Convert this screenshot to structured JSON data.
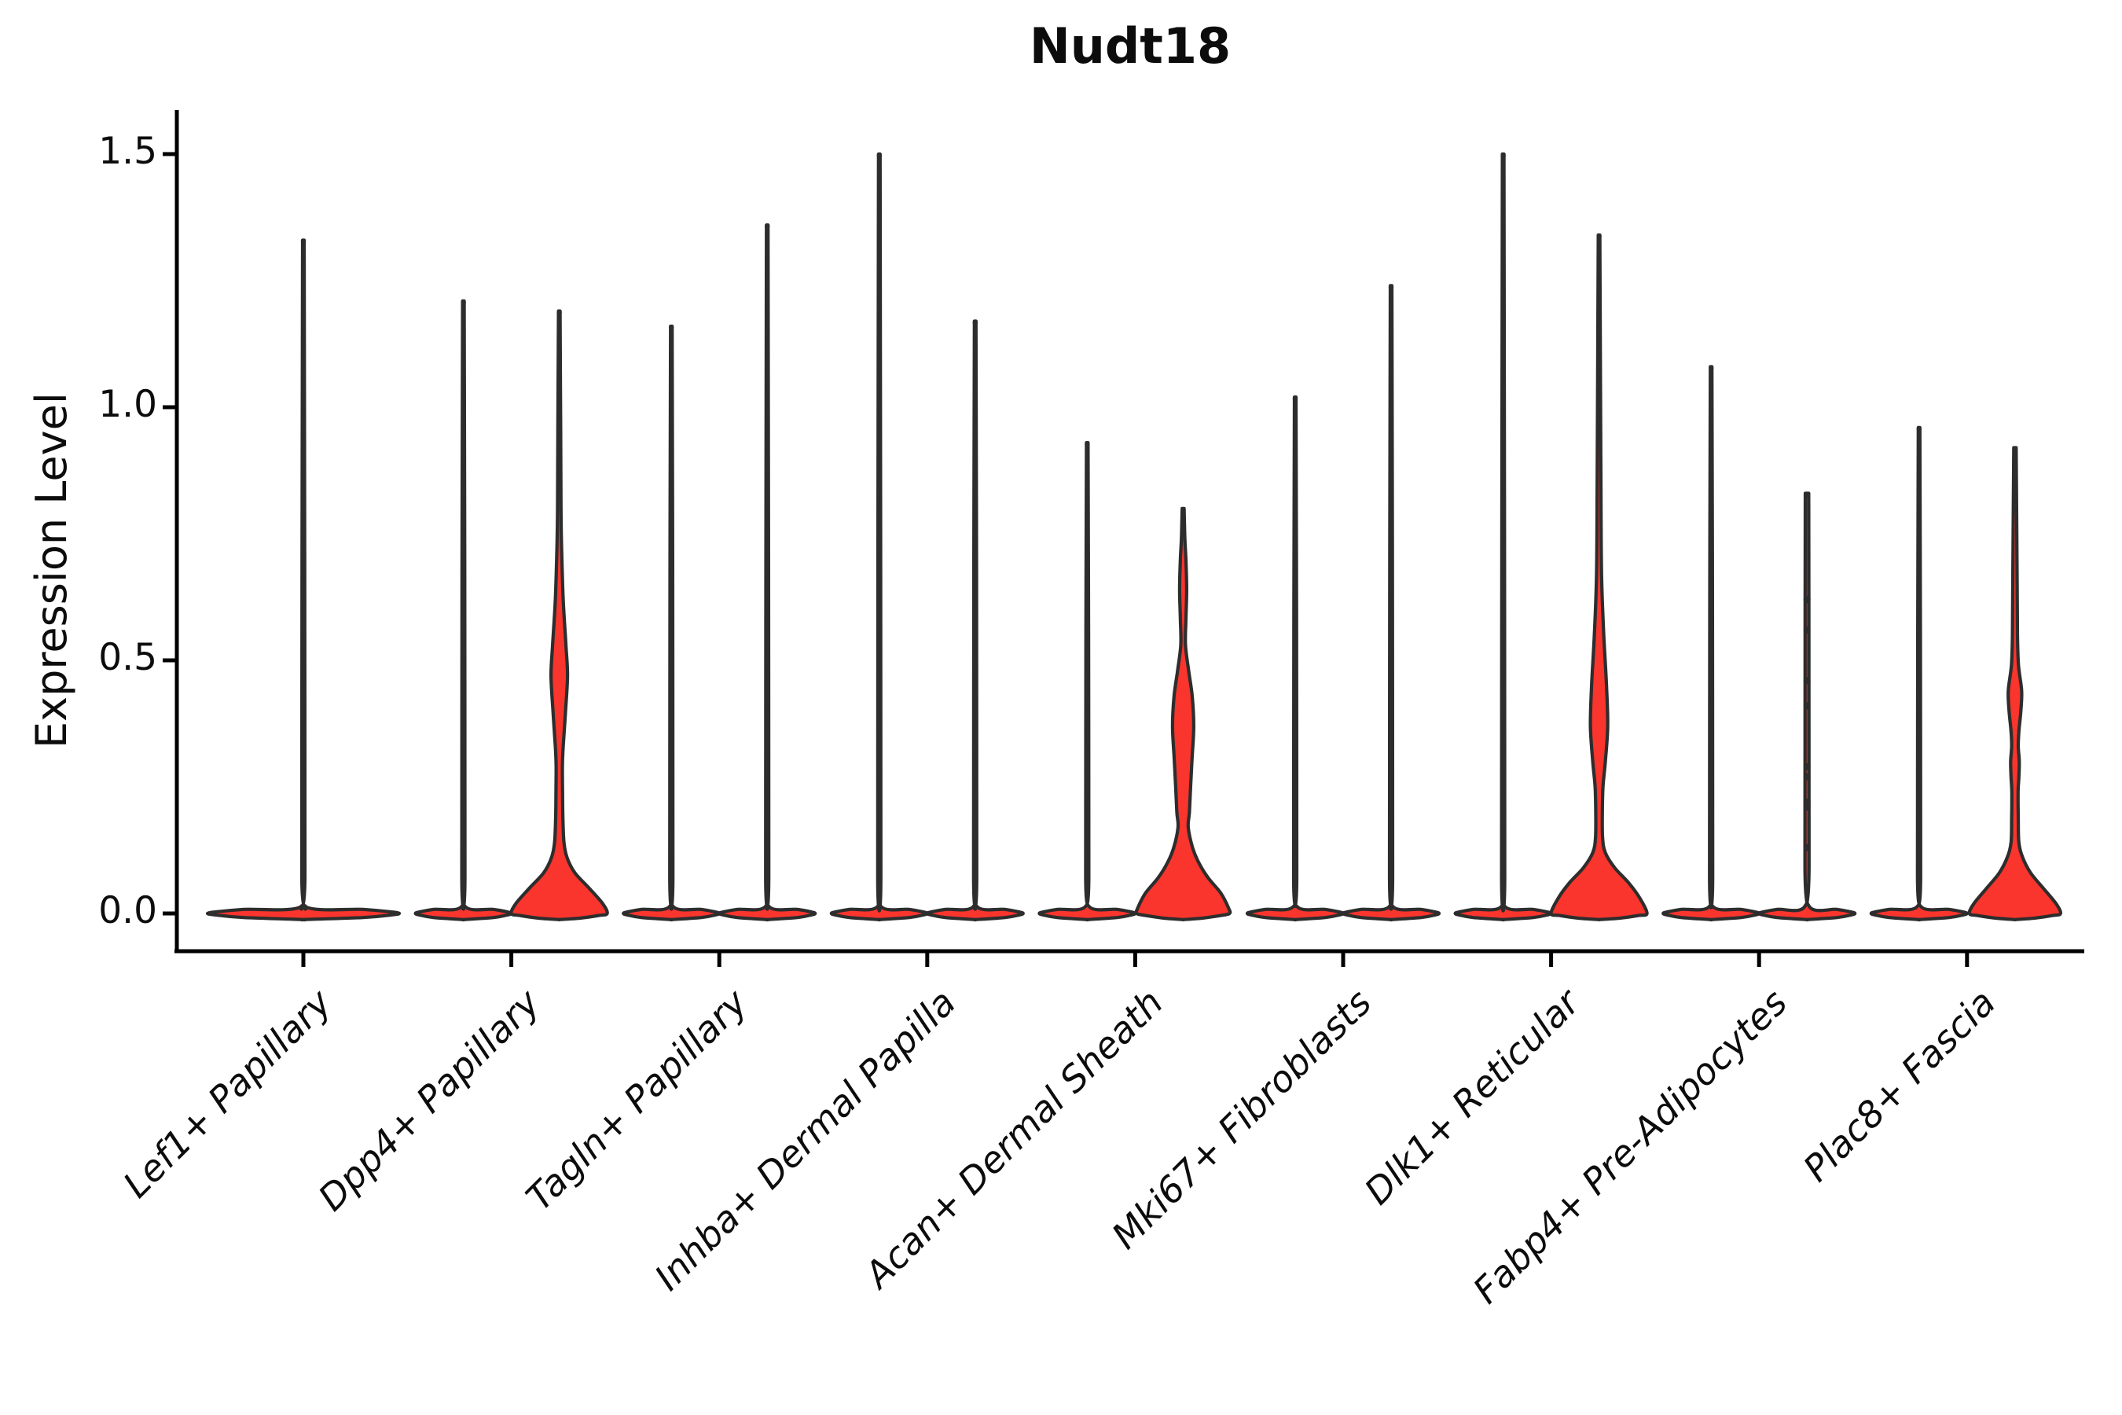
{
  "title": "Nudt18",
  "ylabel": "Expression Level",
  "chart_data": {
    "type": "violin",
    "title": "Nudt18",
    "xlabel": "",
    "ylabel": "Expression Level",
    "ylim": [
      -0.07,
      1.59
    ],
    "yticks": [
      {
        "value": 0.0,
        "label": "0.0"
      },
      {
        "value": 0.5,
        "label": "0.5"
      },
      {
        "value": 1.0,
        "label": "1.0"
      },
      {
        "value": 1.5,
        "label": "1.5"
      }
    ],
    "grid": false,
    "legend": "none",
    "categories": [
      "Lef1+ Papillary",
      "Dpp4+ Papillary",
      "Tagln+ Papillary",
      "Inhba+ Dermal Papilla",
      "Acan+ Dermal Sheath",
      "Mki67+ Fibroblasts",
      "Dlk1+ Reticular",
      "Fabp4+ Pre-Adipocytes",
      "Plac8+ Fascia"
    ],
    "colors": {
      "violin_fill": "#f9352d",
      "violin_outline": "#2d2d2d",
      "axis": "#000000",
      "text": "#0c0c0c"
    },
    "note": "Most cells express 0 (violins collapsed to flat baseline with a thin spike to the max expressing cell). Each category has two side-by-side violins except Lef1+ Papillary which has one full-width violin. Red area visible where density is wide enough.",
    "violins": [
      {
        "category_index": 0,
        "category": "Lef1+ Papillary",
        "side": "single",
        "max_expression": 1.33,
        "red_visible": false,
        "dots": [],
        "profile": [
          [
            1.33,
            1
          ],
          [
            0.7,
            1.7
          ],
          [
            0.08,
            2.0
          ],
          [
            0.014,
            2.2
          ],
          [
            0.008,
            76
          ],
          [
            0.003,
            112
          ],
          [
            0,
            122
          ],
          [
            -0.003,
            112
          ],
          [
            -0.008,
            76
          ],
          [
            -0.012,
            1.5
          ]
        ]
      },
      {
        "category_index": 1,
        "category": "Dpp4+ Papillary",
        "side": "left",
        "max_expression": 1.21,
        "red_visible": false,
        "dots": [],
        "profile": [
          [
            1.21,
            1
          ],
          [
            0.7,
            1.7
          ],
          [
            0.08,
            2.0
          ],
          [
            0.014,
            2.2
          ],
          [
            0.008,
            38
          ],
          [
            0.003,
            56
          ],
          [
            0,
            61
          ],
          [
            -0.003,
            56
          ],
          [
            -0.008,
            38
          ],
          [
            -0.012,
            1.5
          ]
        ]
      },
      {
        "category_index": 1,
        "category": "Dpp4+ Papillary",
        "side": "right",
        "max_expression": 1.19,
        "red_visible": true,
        "dots": [],
        "profile": [
          [
            1.19,
            1
          ],
          [
            0.95,
            1.8
          ],
          [
            0.8,
            2.2
          ],
          [
            0.72,
            3.0
          ],
          [
            0.62,
            5.0
          ],
          [
            0.53,
            8.5
          ],
          [
            0.47,
            10.5
          ],
          [
            0.4,
            8.0
          ],
          [
            0.33,
            5.0
          ],
          [
            0.29,
            4.0
          ],
          [
            0.24,
            4.2
          ],
          [
            0.19,
            4.6
          ],
          [
            0.14,
            6.0
          ],
          [
            0.11,
            10
          ],
          [
            0.08,
            20
          ],
          [
            0.05,
            38
          ],
          [
            0.02,
            55
          ],
          [
            0,
            61
          ],
          [
            -0.004,
            50
          ],
          [
            -0.009,
            28
          ],
          [
            -0.012,
            1.5
          ]
        ]
      },
      {
        "category_index": 2,
        "category": "Tagln+ Papillary",
        "side": "left",
        "max_expression": 1.16,
        "red_visible": false,
        "dots": [],
        "profile": [
          [
            1.16,
            1
          ],
          [
            0.7,
            1.7
          ],
          [
            0.08,
            2.0
          ],
          [
            0.014,
            2.2
          ],
          [
            0.008,
            38
          ],
          [
            0.003,
            56
          ],
          [
            0,
            61
          ],
          [
            -0.003,
            56
          ],
          [
            -0.008,
            38
          ],
          [
            -0.012,
            1.5
          ]
        ]
      },
      {
        "category_index": 2,
        "category": "Tagln+ Papillary",
        "side": "right",
        "max_expression": 1.36,
        "red_visible": false,
        "dots": [],
        "profile": [
          [
            1.36,
            1
          ],
          [
            0.7,
            1.7
          ],
          [
            0.08,
            2.0
          ],
          [
            0.014,
            2.2
          ],
          [
            0.008,
            38
          ],
          [
            0.003,
            56
          ],
          [
            0,
            61
          ],
          [
            -0.003,
            56
          ],
          [
            -0.008,
            38
          ],
          [
            -0.012,
            1.5
          ]
        ]
      },
      {
        "category_index": 3,
        "category": "Inhba+ Dermal Papilla",
        "side": "left",
        "max_expression": 1.5,
        "red_visible": false,
        "dots": [],
        "profile": [
          [
            1.5,
            1
          ],
          [
            0.75,
            1.7
          ],
          [
            0.08,
            2.0
          ],
          [
            0.014,
            2.2
          ],
          [
            0.008,
            38
          ],
          [
            0.003,
            56
          ],
          [
            0,
            61
          ],
          [
            -0.003,
            56
          ],
          [
            -0.008,
            38
          ],
          [
            -0.012,
            1.5
          ]
        ]
      },
      {
        "category_index": 3,
        "category": "Inhba+ Dermal Papilla",
        "side": "right",
        "max_expression": 1.17,
        "red_visible": false,
        "dots": [],
        "profile": [
          [
            1.17,
            1
          ],
          [
            0.7,
            1.7
          ],
          [
            0.08,
            2.0
          ],
          [
            0.014,
            2.2
          ],
          [
            0.008,
            38
          ],
          [
            0.003,
            56
          ],
          [
            0,
            61
          ],
          [
            -0.003,
            56
          ],
          [
            -0.008,
            38
          ],
          [
            -0.012,
            1.5
          ]
        ]
      },
      {
        "category_index": 4,
        "category": "Acan+ Dermal Sheath",
        "side": "left",
        "max_expression": 0.93,
        "red_visible": false,
        "dots": [],
        "profile": [
          [
            0.93,
            1
          ],
          [
            0.55,
            1.7
          ],
          [
            0.08,
            2.0
          ],
          [
            0.014,
            2.2
          ],
          [
            0.008,
            38
          ],
          [
            0.003,
            56
          ],
          [
            0,
            61
          ],
          [
            -0.003,
            56
          ],
          [
            -0.008,
            38
          ],
          [
            -0.012,
            1.5
          ]
        ]
      },
      {
        "category_index": 4,
        "category": "Acan+ Dermal Sheath",
        "side": "right",
        "max_expression": 0.8,
        "red_visible": true,
        "dots": [],
        "profile": [
          [
            0.8,
            1.2
          ],
          [
            0.74,
            2.2
          ],
          [
            0.7,
            3.5
          ],
          [
            0.64,
            4.5
          ],
          [
            0.58,
            3.5
          ],
          [
            0.53,
            3.0
          ],
          [
            0.48,
            7
          ],
          [
            0.43,
            11.5
          ],
          [
            0.37,
            13.5
          ],
          [
            0.31,
            11.5
          ],
          [
            0.25,
            9.5
          ],
          [
            0.2,
            8
          ],
          [
            0.17,
            6.5
          ],
          [
            0.13,
            12
          ],
          [
            0.1,
            20
          ],
          [
            0.07,
            32
          ],
          [
            0.04,
            48
          ],
          [
            0.01,
            58
          ],
          [
            0,
            59
          ],
          [
            -0.004,
            48
          ],
          [
            -0.009,
            26
          ],
          [
            -0.012,
            1.5
          ]
        ]
      },
      {
        "category_index": 5,
        "category": "Mki67+ Fibroblasts",
        "side": "left",
        "max_expression": 1.02,
        "red_visible": false,
        "dots": [],
        "profile": [
          [
            1.02,
            1
          ],
          [
            0.6,
            1.7
          ],
          [
            0.08,
            2.0
          ],
          [
            0.014,
            2.2
          ],
          [
            0.008,
            38
          ],
          [
            0.003,
            56
          ],
          [
            0,
            61
          ],
          [
            -0.003,
            56
          ],
          [
            -0.008,
            38
          ],
          [
            -0.012,
            1.5
          ]
        ]
      },
      {
        "category_index": 5,
        "category": "Mki67+ Fibroblasts",
        "side": "right",
        "max_expression": 1.24,
        "red_visible": false,
        "dots": [],
        "profile": [
          [
            1.24,
            1
          ],
          [
            0.7,
            1.7
          ],
          [
            0.08,
            2.0
          ],
          [
            0.014,
            2.2
          ],
          [
            0.008,
            38
          ],
          [
            0.003,
            56
          ],
          [
            0,
            61
          ],
          [
            -0.003,
            56
          ],
          [
            -0.008,
            38
          ],
          [
            -0.012,
            1.5
          ]
        ]
      },
      {
        "category_index": 6,
        "category": "Dlk1+ Reticular",
        "side": "left",
        "max_expression": 1.5,
        "red_visible": false,
        "dots": [],
        "profile": [
          [
            1.5,
            1
          ],
          [
            0.75,
            1.7
          ],
          [
            0.08,
            2.0
          ],
          [
            0.014,
            2.2
          ],
          [
            0.008,
            38
          ],
          [
            0.003,
            56
          ],
          [
            0,
            61
          ],
          [
            -0.003,
            56
          ],
          [
            -0.008,
            38
          ],
          [
            -0.012,
            1.5
          ]
        ]
      },
      {
        "category_index": 6,
        "category": "Dlk1+ Reticular",
        "side": "right",
        "max_expression": 1.34,
        "red_visible": true,
        "dots": [],
        "profile": [
          [
            1.34,
            1
          ],
          [
            1.05,
            1.8
          ],
          [
            0.85,
            2.4
          ],
          [
            0.67,
            3.2
          ],
          [
            0.55,
            6
          ],
          [
            0.45,
            9.5
          ],
          [
            0.37,
            11
          ],
          [
            0.3,
            8
          ],
          [
            0.25,
            5
          ],
          [
            0.2,
            4.2
          ],
          [
            0.15,
            4.5
          ],
          [
            0.12,
            8
          ],
          [
            0.09,
            20
          ],
          [
            0.06,
            38
          ],
          [
            0.03,
            52
          ],
          [
            0,
            61
          ],
          [
            -0.004,
            50
          ],
          [
            -0.009,
            28
          ],
          [
            -0.012,
            1.5
          ]
        ]
      },
      {
        "category_index": 7,
        "category": "Fabp4+ Pre-Adipocytes",
        "side": "left",
        "max_expression": 1.08,
        "red_visible": false,
        "dots": [],
        "profile": [
          [
            1.08,
            1
          ],
          [
            0.65,
            1.7
          ],
          [
            0.08,
            2.0
          ],
          [
            0.014,
            2.2
          ],
          [
            0.008,
            38
          ],
          [
            0.003,
            56
          ],
          [
            0,
            61
          ],
          [
            -0.003,
            56
          ],
          [
            -0.008,
            38
          ],
          [
            -0.012,
            1.5
          ]
        ]
      },
      {
        "category_index": 7,
        "category": "Fabp4+ Pre-Adipocytes",
        "side": "right",
        "max_expression": 0.83,
        "red_visible": false,
        "dots": [
          0.62,
          0.56,
          0.46,
          0.41,
          0.29,
          0.27,
          0.22,
          0.21,
          0.13
        ],
        "profile": [
          [
            0.83,
            2.2
          ],
          [
            0.6,
            2.4
          ],
          [
            0.1,
            2.6
          ],
          [
            0.014,
            2.8
          ],
          [
            0.008,
            38
          ],
          [
            0.003,
            56
          ],
          [
            0,
            61
          ],
          [
            -0.003,
            56
          ],
          [
            -0.008,
            38
          ],
          [
            -0.012,
            1.5
          ]
        ]
      },
      {
        "category_index": 8,
        "category": "Plac8+ Fascia",
        "side": "left",
        "max_expression": 0.96,
        "red_visible": false,
        "dots": [],
        "profile": [
          [
            0.96,
            1
          ],
          [
            0.55,
            1.7
          ],
          [
            0.08,
            2.0
          ],
          [
            0.014,
            2.2
          ],
          [
            0.008,
            38
          ],
          [
            0.003,
            56
          ],
          [
            0,
            61
          ],
          [
            -0.003,
            56
          ],
          [
            -0.008,
            38
          ],
          [
            -0.012,
            1.5
          ]
        ]
      },
      {
        "category_index": 8,
        "category": "Plac8+ Fascia",
        "side": "right",
        "max_expression": 0.92,
        "red_visible": true,
        "dots": [],
        "profile": [
          [
            0.92,
            1.5
          ],
          [
            0.78,
            2.2
          ],
          [
            0.65,
            2.8
          ],
          [
            0.55,
            3.2
          ],
          [
            0.49,
            4.5
          ],
          [
            0.44,
            8.5
          ],
          [
            0.4,
            7.5
          ],
          [
            0.36,
            5
          ],
          [
            0.33,
            4.2
          ],
          [
            0.3,
            5.5
          ],
          [
            0.27,
            5.0
          ],
          [
            0.24,
            4.0
          ],
          [
            0.19,
            4.2
          ],
          [
            0.14,
            5
          ],
          [
            0.11,
            10
          ],
          [
            0.08,
            20
          ],
          [
            0.05,
            36
          ],
          [
            0.02,
            52
          ],
          [
            0,
            58
          ],
          [
            -0.004,
            48
          ],
          [
            -0.009,
            26
          ],
          [
            -0.012,
            1.5
          ]
        ]
      }
    ]
  }
}
